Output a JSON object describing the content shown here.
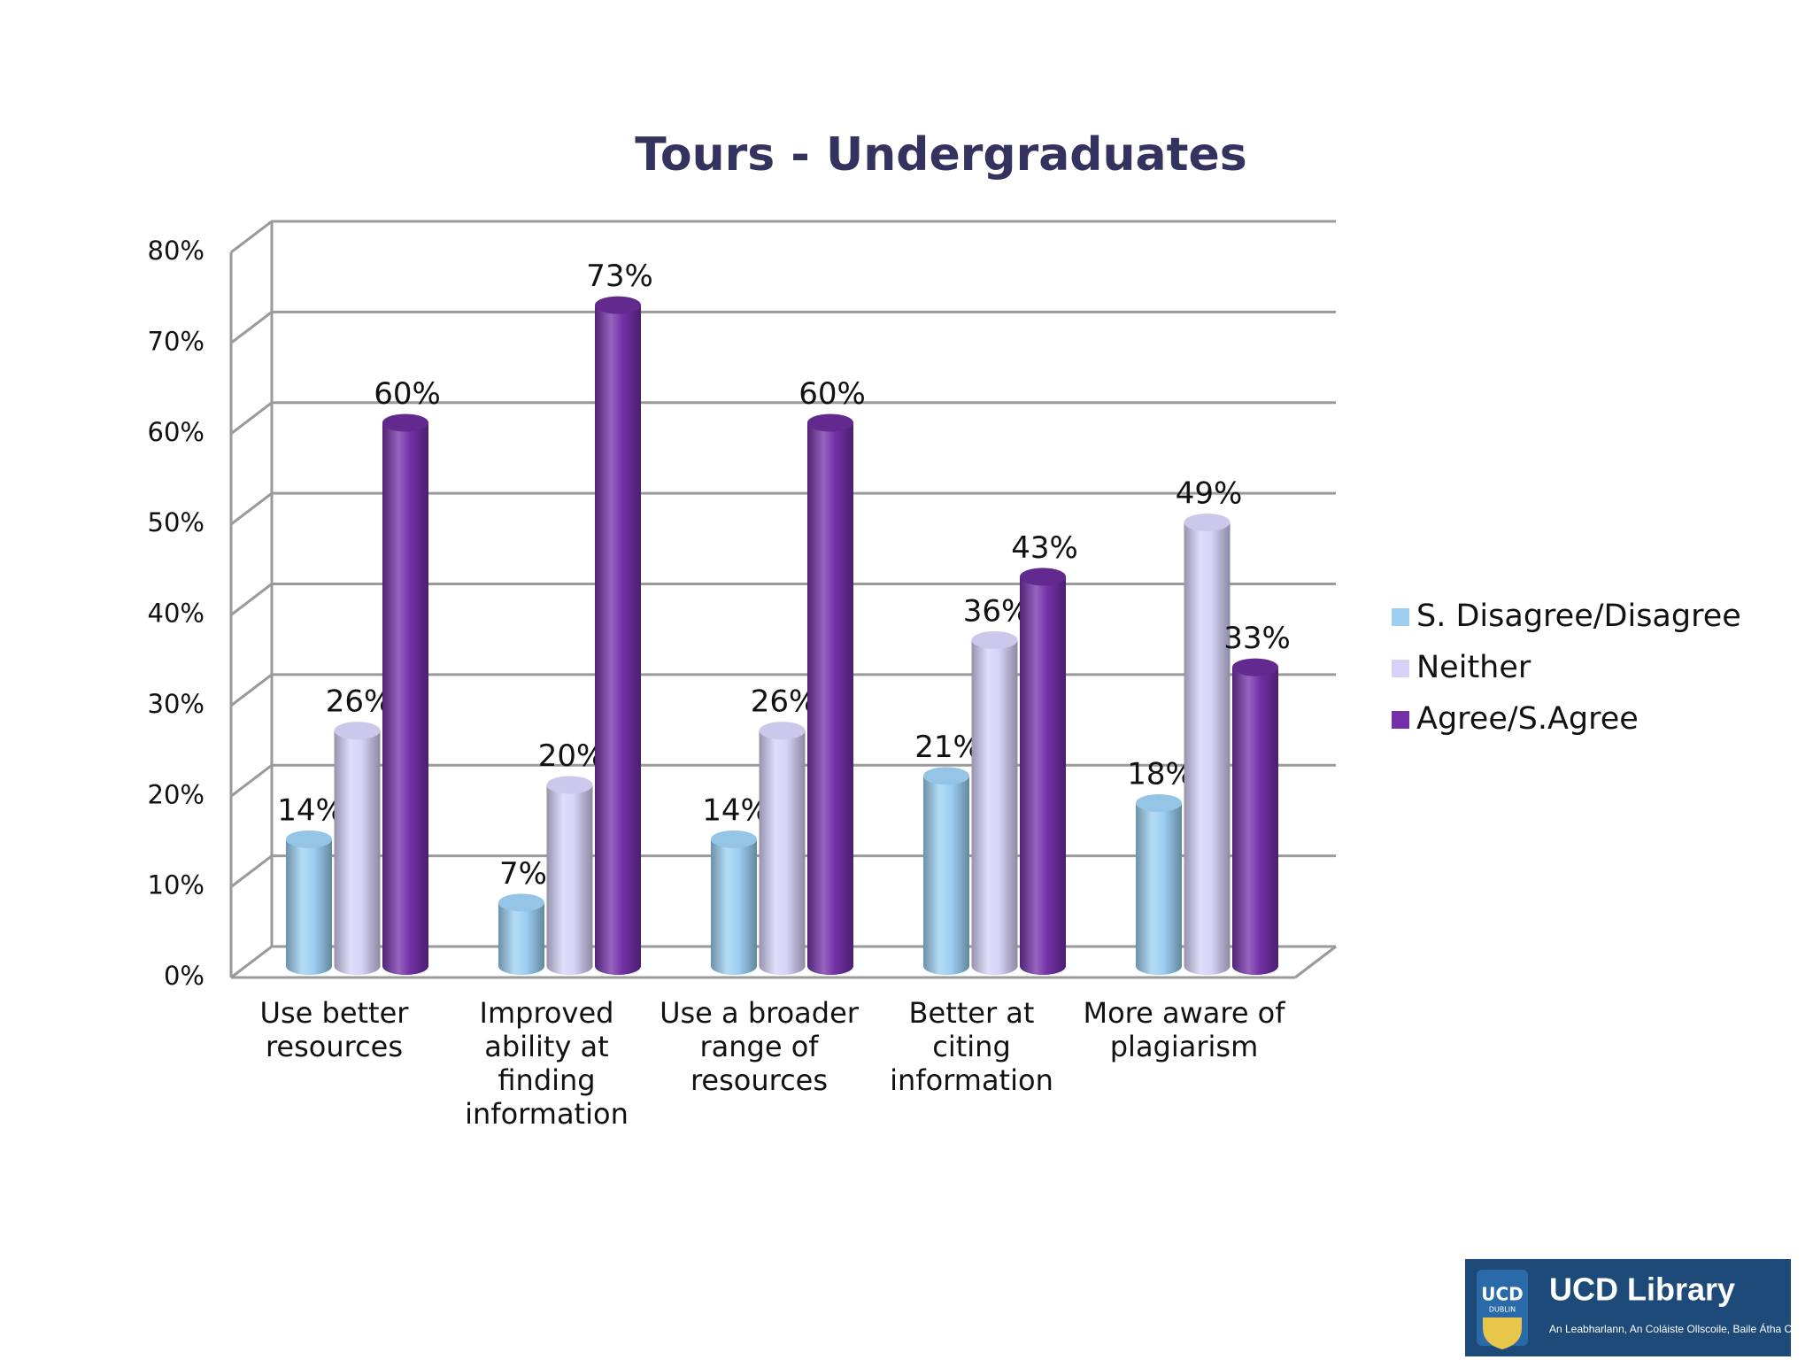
{
  "chart_data": {
    "type": "bar3d",
    "title": "Tours - Undergraduates",
    "categories": [
      "Use better resources",
      "Improved ability at finding information",
      "Use a broader range of resources",
      "Better at citing information",
      "More aware of plagiarism"
    ],
    "series": [
      {
        "name": "S. Disagree/Disagree",
        "color": "#9ccff2",
        "values": [
          14,
          7,
          14,
          21,
          18
        ],
        "value_labels": [
          "14%",
          "7%",
          "14%",
          "21%",
          "18%"
        ]
      },
      {
        "name": "Neither",
        "color": "#d6d2f7",
        "values": [
          26,
          20,
          26,
          36,
          49
        ],
        "value_labels": [
          "26%",
          "20%",
          "26%",
          "36%",
          "49%"
        ]
      },
      {
        "name": "Agree/S.Agree",
        "color": "#7330a8",
        "values": [
          60,
          73,
          60,
          43,
          33
        ],
        "value_labels": [
          "60%",
          "73%",
          "60%",
          "43%",
          "33%"
        ]
      }
    ],
    "ylim": [
      0,
      80
    ],
    "yticks": [
      {
        "value": 0,
        "label": "0%"
      },
      {
        "value": 10,
        "label": "10%"
      },
      {
        "value": 20,
        "label": "20%"
      },
      {
        "value": 30,
        "label": "30%"
      },
      {
        "value": 40,
        "label": "40%"
      },
      {
        "value": 50,
        "label": "50%"
      },
      {
        "value": 60,
        "label": "60%"
      },
      {
        "value": 70,
        "label": "70%"
      },
      {
        "value": 80,
        "label": "80%"
      }
    ],
    "grid": true,
    "legend": "right"
  },
  "logo": {
    "title": "UCD Library",
    "crest_top": "UCD",
    "crest_bottom": "DUBLIN",
    "subtitle": "An Leabharlann, An Coláiste Ollscoile, Baile Átha Cliath"
  }
}
